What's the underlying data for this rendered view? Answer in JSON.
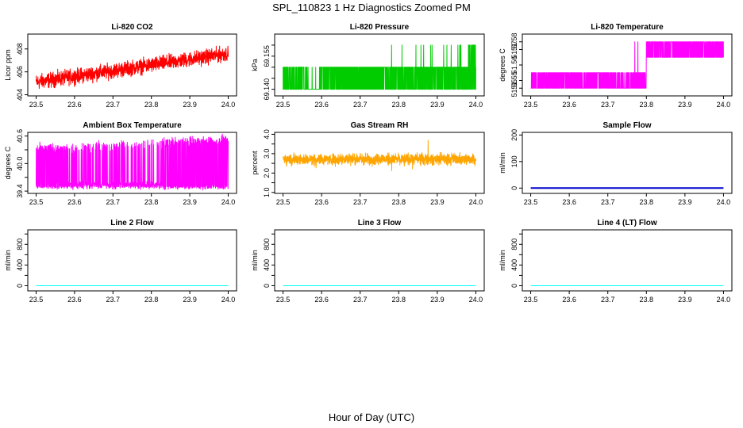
{
  "title": "SPL_110823 1 Hz Diagnostics Zoomed PM",
  "xlabel": "Hour of Day (UTC)",
  "chart_data": [
    {
      "type": "line",
      "title": "Li-820 CO2",
      "ylabel": "Licor ppm",
      "color": "#ff0000",
      "xlim": [
        23.5,
        24.0
      ],
      "ylim": [
        403.9,
        409.3
      ],
      "xticks": [
        23.5,
        23.6,
        23.7,
        23.8,
        23.9,
        24.0
      ],
      "xtick_labels": [
        "23.5",
        "23.6",
        "23.7",
        "23.8",
        "23.9",
        "24.0"
      ],
      "yticks": [
        404,
        406,
        408
      ],
      "ytick_labels": [
        "404",
        "406",
        "408"
      ],
      "x": [
        23.5,
        24.0
      ],
      "trend": [
        405.1,
        407.6
      ],
      "noise": 0.55
    },
    {
      "type": "line",
      "title": "Li-820 Pressure",
      "ylabel": "kPa",
      "color": "#00cc00",
      "xlim": [
        23.5,
        24.0
      ],
      "ylim": [
        69.137,
        69.165
      ],
      "xticks": [
        23.5,
        23.6,
        23.7,
        23.8,
        23.9,
        24.0
      ],
      "xtick_labels": [
        "23.5",
        "23.6",
        "23.7",
        "23.8",
        "23.9",
        "24.0"
      ],
      "yticks": [
        69.14,
        69.145,
        69.15,
        69.155,
        69.16
      ],
      "ytick_labels": [
        "69.140",
        "",
        "",
        "69.155",
        ""
      ],
      "levels": [
        69.14,
        69.15,
        69.16
      ],
      "base_level": 69.15,
      "low_level": 69.14,
      "spike_level": 69.16
    },
    {
      "type": "line",
      "title": "Li-820 Temperature",
      "ylabel": "degrees C",
      "color": "#ff00ff",
      "xlim": [
        23.5,
        24.0
      ],
      "ylim": [
        51.545,
        51.585
      ],
      "xticks": [
        23.5,
        23.6,
        23.7,
        23.8,
        23.9,
        24.0
      ],
      "xtick_labels": [
        "23.5",
        "23.6",
        "23.7",
        "23.8",
        "23.9",
        "24.0"
      ],
      "yticks": [
        51.55,
        51.555,
        51.565,
        51.575,
        51.58
      ],
      "ytick_labels": [
        "51.55",
        "51.55",
        "51.56",
        "51.57",
        "51.58"
      ],
      "level_low": 51.55,
      "level_high": 51.58,
      "step_x": 23.8
    },
    {
      "type": "line",
      "title": "Ambient Box Temperature",
      "ylabel": "degrees C",
      "color": "#ff00ff",
      "xlim": [
        23.5,
        24.0
      ],
      "ylim": [
        39.35,
        40.68
      ],
      "xticks": [
        23.5,
        23.6,
        23.7,
        23.8,
        23.9,
        24.0
      ],
      "xtick_labels": [
        "23.5",
        "23.6",
        "23.7",
        "23.8",
        "23.9",
        "24.0"
      ],
      "yticks": [
        39.4,
        39.7,
        40.0,
        40.3,
        40.6
      ],
      "ytick_labels": [
        "39.4",
        "",
        "40.0",
        "",
        "40.6"
      ],
      "low": 39.5,
      "high_start": 40.3,
      "high_end": 40.5
    },
    {
      "type": "line",
      "title": "Gas Stream RH",
      "ylabel": "percent",
      "color": "#ffa500",
      "xlim": [
        23.5,
        24.0
      ],
      "ylim": [
        0.95,
        4.1
      ],
      "xticks": [
        23.5,
        23.6,
        23.7,
        23.8,
        23.9,
        24.0
      ],
      "xtick_labels": [
        "23.5",
        "23.6",
        "23.7",
        "23.8",
        "23.9",
        "24.0"
      ],
      "yticks": [
        1.0,
        1.5,
        2.0,
        2.5,
        3.0,
        3.5,
        4.0
      ],
      "ytick_labels": [
        "1.0",
        "",
        "2.0",
        "",
        "3.0",
        "",
        "4.0"
      ],
      "mean": 2.72,
      "spread": 0.25
    },
    {
      "type": "line",
      "title": "Sample Flow",
      "ylabel": "ml/min",
      "color": "#0000cd",
      "xlim": [
        23.5,
        24.0
      ],
      "ylim": [
        -20,
        210
      ],
      "xticks": [
        23.5,
        23.6,
        23.7,
        23.8,
        23.9,
        24.0
      ],
      "xtick_labels": [
        "23.5",
        "23.6",
        "23.7",
        "23.8",
        "23.9",
        "24.0"
      ],
      "yticks": [
        0,
        100,
        200
      ],
      "ytick_labels": [
        "0",
        "100",
        "200"
      ],
      "x": [
        23.5,
        24.0
      ],
      "y": [
        0,
        0
      ]
    },
    {
      "type": "line",
      "title": "Line 2 Flow",
      "ylabel": "ml/min",
      "color": "#00ffff",
      "xlim": [
        23.5,
        24.0
      ],
      "ylim": [
        -100,
        1080
      ],
      "xticks": [
        23.5,
        23.6,
        23.7,
        23.8,
        23.9,
        24.0
      ],
      "xtick_labels": [
        "23.5",
        "23.6",
        "23.7",
        "23.8",
        "23.9",
        "24.0"
      ],
      "yticks": [
        0,
        200,
        400,
        600,
        800,
        1000
      ],
      "ytick_labels": [
        "0",
        "",
        "400",
        "",
        "800",
        ""
      ],
      "x": [
        23.5,
        24.0
      ],
      "y": [
        0,
        0
      ]
    },
    {
      "type": "line",
      "title": "Line 3 Flow",
      "ylabel": "ml/min",
      "color": "#00ffff",
      "xlim": [
        23.5,
        24.0
      ],
      "ylim": [
        -100,
        1080
      ],
      "xticks": [
        23.5,
        23.6,
        23.7,
        23.8,
        23.9,
        24.0
      ],
      "xtick_labels": [
        "23.5",
        "23.6",
        "23.7",
        "23.8",
        "23.9",
        "24.0"
      ],
      "yticks": [
        0,
        200,
        400,
        600,
        800,
        1000
      ],
      "ytick_labels": [
        "0",
        "",
        "400",
        "",
        "800",
        ""
      ],
      "x": [
        23.5,
        24.0
      ],
      "y": [
        0,
        0
      ]
    },
    {
      "type": "line",
      "title": "Line 4 (LT) Flow",
      "ylabel": "ml/min",
      "color": "#00ffff",
      "xlim": [
        23.5,
        24.0
      ],
      "ylim": [
        -100,
        1080
      ],
      "xticks": [
        23.5,
        23.6,
        23.7,
        23.8,
        23.9,
        24.0
      ],
      "xtick_labels": [
        "23.5",
        "23.6",
        "23.7",
        "23.8",
        "23.9",
        "24.0"
      ],
      "yticks": [
        0,
        200,
        400,
        600,
        800,
        1000
      ],
      "ytick_labels": [
        "0",
        "",
        "400",
        "",
        "800",
        ""
      ],
      "x": [
        23.5,
        24.0
      ],
      "y": [
        0,
        0
      ]
    }
  ]
}
